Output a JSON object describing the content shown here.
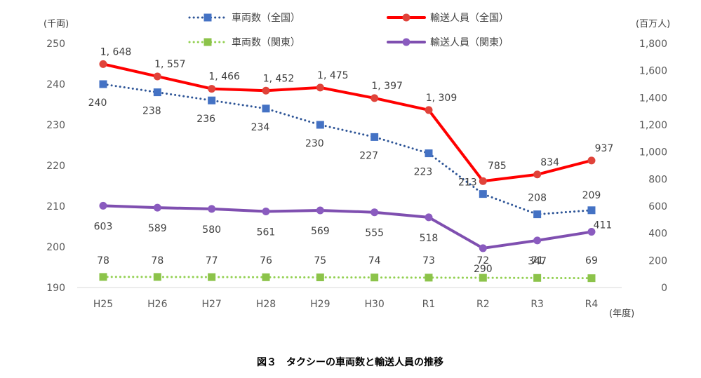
{
  "chart_data": {
    "type": "line",
    "title": "",
    "caption": "図３　タクシーの車両数と輸送人員の推移",
    "left_unit": "(千両)",
    "right_unit": "(百万人)",
    "x_unit": "(年度)",
    "categories": [
      "H25",
      "H26",
      "H27",
      "H28",
      "H29",
      "H30",
      "R1",
      "R2",
      "R3",
      "R4"
    ],
    "left_axis": {
      "min": 190,
      "max": 250,
      "ticks": [
        "190",
        "200",
        "210",
        "220",
        "230",
        "240",
        "250"
      ]
    },
    "right_axis": {
      "min": 0,
      "max": 1800,
      "ticks": [
        "0",
        "200",
        "400",
        "600",
        "800",
        "1,000",
        "1,200",
        "1,400",
        "1,600",
        "1,800"
      ]
    },
    "grid": false,
    "legend_position": "top",
    "series": [
      {
        "name": "車両数（全国）",
        "axis": "left",
        "style": "dotted",
        "marker": "square",
        "color": "#2E5597",
        "marker_color": "#4472C4",
        "values": [
          240,
          238,
          236,
          234,
          230,
          227,
          223,
          213,
          208,
          209
        ],
        "labels": [
          "240",
          "238",
          "236",
          "234",
          "230",
          "227",
          "223",
          "213",
          "208",
          "209"
        ]
      },
      {
        "name": "輸送人員（全国）",
        "axis": "right",
        "style": "solid",
        "marker": "circle",
        "color": "#FF0000",
        "marker_color": "#E0433A",
        "values": [
          1648,
          1557,
          1466,
          1452,
          1475,
          1397,
          1309,
          785,
          834,
          937
        ],
        "labels": [
          "1, 648",
          "1, 557",
          "1, 466",
          "1, 452",
          "1, 475",
          "1, 397",
          "1, 309",
          "785",
          "834",
          "937"
        ]
      },
      {
        "name": "車両数（関東）",
        "axis": "right",
        "style": "dotted",
        "marker": "square",
        "color": "#92D050",
        "marker_color": "#8CC34A",
        "values": [
          78,
          78,
          77,
          76,
          75,
          74,
          73,
          72,
          71,
          69
        ],
        "labels": [
          "78",
          "78",
          "77",
          "76",
          "75",
          "74",
          "73",
          "72",
          "71",
          "69"
        ]
      },
      {
        "name": "輸送人員（関東）",
        "axis": "right",
        "style": "solid",
        "marker": "circle",
        "color": "#7F4FB0",
        "marker_color": "#8A5BBF",
        "values": [
          603,
          589,
          580,
          561,
          569,
          555,
          518,
          290,
          347,
          411
        ],
        "labels": [
          "603",
          "589",
          "580",
          "561",
          "569",
          "555",
          "518",
          "290",
          "347",
          "411"
        ]
      }
    ]
  }
}
